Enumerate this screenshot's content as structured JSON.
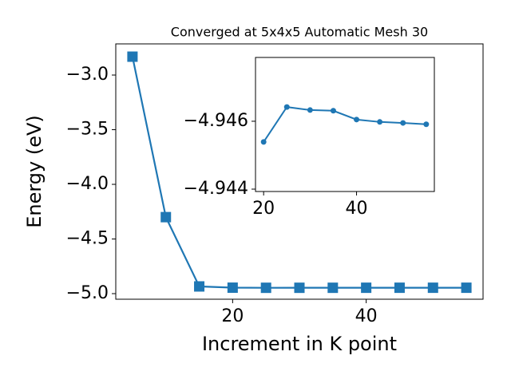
{
  "chart_data": [
    {
      "type": "line",
      "title": "Converged at 5x4x5 Automatic Mesh 30",
      "xlabel": "Increment in K point",
      "ylabel": "Energy (eV)",
      "x": [
        5,
        10,
        15,
        20,
        25,
        30,
        35,
        40,
        45,
        50,
        55
      ],
      "series": [
        {
          "color": "#1f77b4",
          "marker": "square",
          "values": [
            -2.832,
            -4.3,
            -4.934,
            -4.94539,
            -4.94642,
            -4.94633,
            -4.94631,
            -4.94605,
            -4.94598,
            -4.94595,
            -4.94591
          ]
        }
      ],
      "xlim": [
        2.5,
        57.5
      ],
      "ylim": [
        -5.051,
        -2.715
      ],
      "xticks": [
        20,
        40
      ],
      "yticks": [
        {
          "value": -3.0,
          "label": "−3.0"
        },
        {
          "value": -3.5,
          "label": "−3.5"
        },
        {
          "value": -4.0,
          "label": "−4.0"
        },
        {
          "value": -4.5,
          "label": "−4.5"
        },
        {
          "value": -5.0,
          "label": "−5.0"
        }
      ]
    },
    {
      "type": "line",
      "x": [
        20,
        25,
        30,
        35,
        40,
        45,
        50,
        55
      ],
      "series": [
        {
          "color": "#1f77b4",
          "marker": "circle",
          "values": [
            -4.94539,
            -4.94642,
            -4.94633,
            -4.94631,
            -4.94605,
            -4.94598,
            -4.94595,
            -4.94591
          ]
        }
      ],
      "xlim": [
        18.25,
        56.75
      ],
      "ylim": [
        -4.94393,
        -4.94788
      ],
      "xticks": [
        20,
        40
      ],
      "yticks": [
        {
          "value": -4.946,
          "label": "−4.946"
        },
        {
          "value": -4.944,
          "label": "−4.944"
        }
      ]
    }
  ]
}
